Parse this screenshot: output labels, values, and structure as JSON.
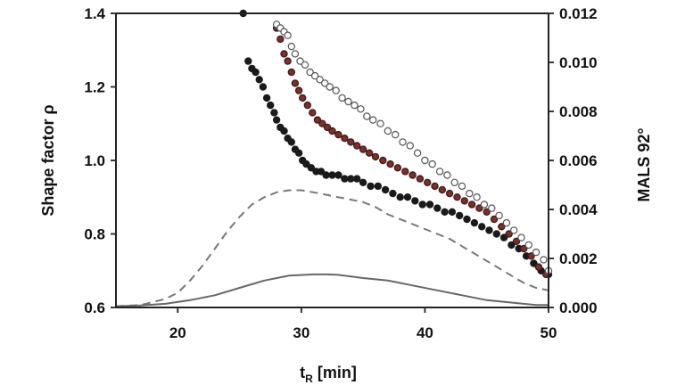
{
  "chart_data": {
    "type": "scatter",
    "xlabel": "t",
    "xlabel_subscript": "R",
    "xlabel_unit": " [min]",
    "ylabel": "Shape factor ρ",
    "y2label": "MALS 92°",
    "xlim": [
      15,
      50
    ],
    "ylim": [
      0.6,
      1.4
    ],
    "y2lim": [
      0.0,
      0.012
    ],
    "grid": false,
    "legend": "none",
    "x_ticks": [
      "20",
      "30",
      "40",
      "50"
    ],
    "y_ticks": [
      "0.6",
      "0.8",
      "1.0",
      "1.2",
      "1.4"
    ],
    "y2_ticks": [
      "0.000",
      "0.002",
      "0.004",
      "0.006",
      "0.008",
      "0.010",
      "0.012"
    ],
    "series": [
      {
        "axis": "left",
        "kind": "points",
        "color": "#1a1a1a",
        "stroke": "#1a1a1a",
        "x": [
          25.3,
          25.7,
          26.0,
          26.3,
          26.6,
          26.9,
          27.2,
          27.5,
          27.8,
          28.0,
          28.3,
          28.6,
          28.9,
          29.2,
          29.5,
          29.8,
          30.1,
          30.4,
          30.8,
          31.2,
          31.6,
          32.0,
          32.5,
          33.0,
          33.5,
          34.0,
          34.5,
          35.0,
          35.6,
          36.2,
          36.8,
          37.4,
          38.0,
          38.6,
          39.2,
          39.8,
          40.4,
          41.0,
          41.6,
          42.2,
          42.8,
          43.4,
          44.0,
          44.6,
          45.2,
          45.8,
          46.4,
          47.0,
          47.6,
          48.2,
          48.8,
          49.4,
          50.0
        ],
        "y": [
          1.4,
          1.27,
          1.25,
          1.24,
          1.22,
          1.2,
          1.17,
          1.15,
          1.13,
          1.11,
          1.09,
          1.08,
          1.06,
          1.05,
          1.03,
          1.02,
          1.0,
          0.99,
          0.98,
          0.97,
          0.97,
          0.96,
          0.96,
          0.96,
          0.95,
          0.95,
          0.95,
          0.94,
          0.93,
          0.93,
          0.92,
          0.91,
          0.9,
          0.9,
          0.89,
          0.88,
          0.88,
          0.87,
          0.86,
          0.86,
          0.85,
          0.84,
          0.83,
          0.82,
          0.81,
          0.8,
          0.79,
          0.77,
          0.76,
          0.74,
          0.72,
          0.7,
          0.69
        ]
      },
      {
        "axis": "left",
        "kind": "points",
        "color": "#7a2f2a",
        "stroke": "#3a1a18",
        "x": [
          28.0,
          28.3,
          28.6,
          28.9,
          29.2,
          29.5,
          29.8,
          30.1,
          30.5,
          30.9,
          31.3,
          31.7,
          32.1,
          32.5,
          33.0,
          33.5,
          34.0,
          34.5,
          35.0,
          35.5,
          36.0,
          36.6,
          37.2,
          37.8,
          38.4,
          39.0,
          39.6,
          40.2,
          40.8,
          41.4,
          42.0,
          42.6,
          43.2,
          43.8,
          44.4,
          45.0,
          45.6,
          46.2,
          46.8,
          47.4,
          48.0,
          48.6,
          49.2,
          49.8
        ],
        "y": [
          1.36,
          1.33,
          1.29,
          1.27,
          1.24,
          1.21,
          1.19,
          1.17,
          1.15,
          1.13,
          1.11,
          1.1,
          1.09,
          1.08,
          1.07,
          1.06,
          1.05,
          1.04,
          1.03,
          1.02,
          1.01,
          1.0,
          0.99,
          0.98,
          0.97,
          0.96,
          0.95,
          0.94,
          0.93,
          0.92,
          0.91,
          0.9,
          0.89,
          0.88,
          0.87,
          0.86,
          0.84,
          0.82,
          0.8,
          0.78,
          0.76,
          0.74,
          0.71,
          0.69
        ]
      },
      {
        "axis": "left",
        "kind": "points",
        "color": "#ffffff",
        "stroke": "#555555",
        "x": [
          28.0,
          28.3,
          28.6,
          28.9,
          29.2,
          29.5,
          29.9,
          30.3,
          30.7,
          31.1,
          31.5,
          31.9,
          32.3,
          32.8,
          33.3,
          33.8,
          34.3,
          34.8,
          35.3,
          35.8,
          36.4,
          37.0,
          37.6,
          38.2,
          38.8,
          39.4,
          40.0,
          40.6,
          41.2,
          41.8,
          42.4,
          43.0,
          43.6,
          44.2,
          44.8,
          45.4,
          46.0,
          46.6,
          47.2,
          47.8,
          48.4,
          49.0,
          49.6,
          50.0
        ],
        "y": [
          1.37,
          1.36,
          1.35,
          1.34,
          1.31,
          1.29,
          1.27,
          1.26,
          1.24,
          1.23,
          1.22,
          1.21,
          1.2,
          1.19,
          1.17,
          1.16,
          1.15,
          1.14,
          1.12,
          1.11,
          1.1,
          1.08,
          1.07,
          1.05,
          1.04,
          1.02,
          1.0,
          0.99,
          0.97,
          0.96,
          0.94,
          0.93,
          0.91,
          0.9,
          0.88,
          0.87,
          0.85,
          0.83,
          0.81,
          0.79,
          0.77,
          0.75,
          0.73,
          0.7
        ]
      },
      {
        "axis": "right",
        "kind": "dashed-line",
        "color": "#777777",
        "x": [
          15,
          17,
          19,
          20,
          21,
          22,
          23,
          24,
          25,
          26,
          27,
          28,
          29,
          30,
          31,
          32,
          33,
          34,
          35,
          36,
          37,
          38,
          39,
          40,
          41,
          42,
          43,
          44,
          45,
          46,
          47,
          48,
          49,
          50
        ],
        "y": [
          5e-05,
          0.0001,
          0.00035,
          0.0006,
          0.0011,
          0.0017,
          0.0024,
          0.0031,
          0.0037,
          0.0042,
          0.0045,
          0.0047,
          0.00478,
          0.00478,
          0.0047,
          0.0046,
          0.0045,
          0.0044,
          0.0043,
          0.0041,
          0.0038,
          0.0036,
          0.0034,
          0.0032,
          0.003,
          0.0028,
          0.0025,
          0.0022,
          0.0019,
          0.0016,
          0.0013,
          0.001,
          0.0008,
          0.0007
        ]
      },
      {
        "axis": "right",
        "kind": "solid-line",
        "color": "#666666",
        "x": [
          15,
          17,
          19,
          21,
          23,
          25,
          27,
          29,
          31,
          32,
          33,
          35,
          37,
          39,
          41,
          43,
          45,
          47,
          49,
          50
        ],
        "y": [
          5e-05,
          8e-05,
          0.00015,
          0.0003,
          0.0005,
          0.0008,
          0.0011,
          0.0013,
          0.00135,
          0.00135,
          0.00133,
          0.0012,
          0.0011,
          0.0009,
          0.0007,
          0.0005,
          0.0003,
          0.0002,
          0.0001,
          0.0001
        ]
      }
    ]
  }
}
